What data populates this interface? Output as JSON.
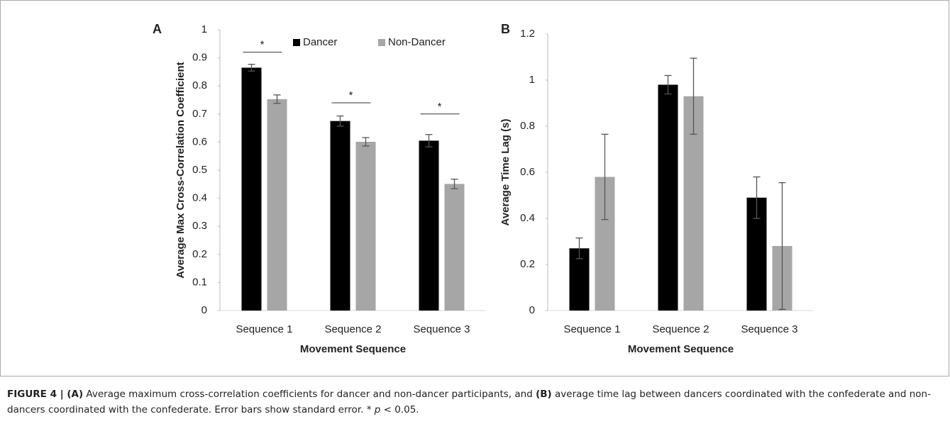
{
  "chart_data": [
    {
      "type": "bar",
      "panel_label": "A",
      "ylabel": "Average Max Cross-Correlation Coefficient",
      "xlabel": "Movement Sequence",
      "categories": [
        "Sequence 1",
        "Sequence 2",
        "Sequence 3"
      ],
      "series": [
        {
          "name": "Dancer",
          "color": "#000000",
          "values": [
            0.865,
            0.675,
            0.605
          ],
          "errors": [
            0.012,
            0.018,
            0.022
          ]
        },
        {
          "name": "Non-Dancer",
          "color": "#a6a6a6",
          "values": [
            0.753,
            0.601,
            0.451
          ],
          "errors": [
            0.015,
            0.015,
            0.017
          ]
        }
      ],
      "significance": [
        {
          "text": "*",
          "y": 0.92
        },
        {
          "text": "*",
          "y": 0.74
        },
        {
          "text": "*",
          "y": 0.7
        }
      ],
      "ylim": [
        0,
        1
      ],
      "yticks": [
        0,
        0.1,
        0.2,
        0.3,
        0.4,
        0.5,
        0.6,
        0.7,
        0.8,
        0.9,
        1
      ],
      "legend": "top"
    },
    {
      "type": "bar",
      "panel_label": "B",
      "ylabel": "Average Time Lag (s)",
      "xlabel": "Movement Sequence",
      "categories": [
        "Sequence 1",
        "Sequence 2",
        "Sequence 3"
      ],
      "series": [
        {
          "color": "#000000",
          "values": [
            0.27,
            0.98,
            0.49
          ],
          "errors": [
            0.045,
            0.04,
            0.09
          ]
        },
        {
          "color": "#a6a6a6",
          "values": [
            0.58,
            0.93,
            0.28
          ],
          "errors": [
            0.185,
            0.165,
            0.275
          ]
        }
      ],
      "ylim": [
        0,
        1.2
      ],
      "yticks": [
        0,
        0.2,
        0.4,
        0.6,
        0.8,
        1,
        1.2
      ]
    }
  ],
  "caption": [
    {
      "text": "FIGURE 4 | (A)",
      "bold": true
    },
    {
      "text": " Average maximum cross-correlation coefficients for dancer and non-dancer participants, and "
    },
    {
      "text": "(B)",
      "bold": true
    },
    {
      "text": " average time lag between dancers coordinated with the confederate and non-dancers coordinated with the confederate. Error bars show standard error. * "
    },
    {
      "text": "p",
      "italic": true
    },
    {
      "text": " < 0.05."
    }
  ]
}
